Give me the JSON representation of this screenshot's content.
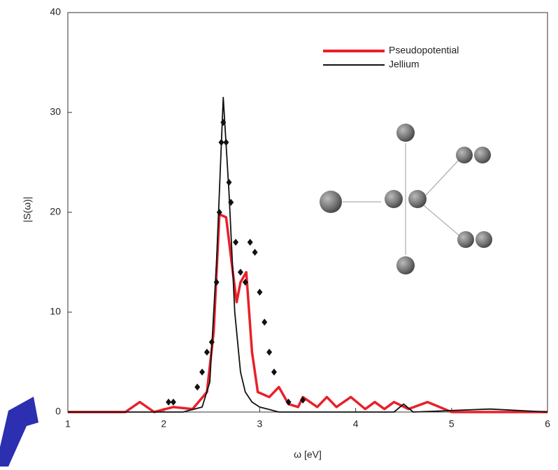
{
  "chart_data": {
    "type": "line",
    "xlabel": "ω [eV]",
    "ylabel": "|S(ω)|",
    "xlim": [
      1,
      6
    ],
    "xticks": [
      1,
      2,
      3,
      4,
      5,
      6
    ],
    "ylim": [
      0,
      40
    ],
    "yticks": [
      0,
      10,
      20,
      30,
      40
    ],
    "legend": "upper right",
    "series": [
      {
        "name": "Pseudopotential",
        "color": "#e8202a",
        "x": [
          1,
          1.6,
          1.75,
          1.9,
          2.1,
          2.3,
          2.45,
          2.52,
          2.58,
          2.65,
          2.72,
          2.76,
          2.8,
          2.86,
          2.92,
          2.98,
          3.1,
          3.2,
          3.3,
          3.4,
          3.45,
          3.6,
          3.7,
          3.8,
          3.95,
          4.1,
          4.2,
          4.3,
          4.4,
          4.55,
          4.75,
          5,
          6
        ],
        "values": [
          0,
          0,
          1,
          0,
          0.5,
          0.3,
          2,
          8,
          19.8,
          19.5,
          14,
          11,
          13,
          14,
          6,
          2,
          1.5,
          2.5,
          0.8,
          0.5,
          1.5,
          0.5,
          1.5,
          0.5,
          1.5,
          0.3,
          1,
          0.3,
          1,
          0.3,
          1,
          0,
          0
        ]
      },
      {
        "name": "Jellium",
        "color": "#111111",
        "x": [
          1,
          2.2,
          2.4,
          2.48,
          2.55,
          2.62,
          2.68,
          2.74,
          2.8,
          2.85,
          2.92,
          3,
          3.2,
          4.4,
          4.5,
          4.6,
          5.4,
          6
        ],
        "values": [
          0,
          0,
          0.5,
          3,
          15,
          31.5,
          22,
          10,
          4,
          2,
          1,
          0.5,
          0,
          0,
          0.8,
          0,
          0.3,
          0
        ]
      }
    ],
    "markers": {
      "color": "#111111",
      "x": [
        2.05,
        2.1,
        2.35,
        2.4,
        2.45,
        2.5,
        2.55,
        2.58,
        2.6,
        2.62,
        2.65,
        2.68,
        2.7,
        2.75,
        2.8,
        2.85,
        2.9,
        2.95,
        3.0,
        3.05,
        3.1,
        3.15,
        3.3,
        3.45
      ],
      "values": [
        1,
        1,
        2.5,
        4,
        6,
        7,
        13,
        20,
        27,
        29,
        27,
        23,
        21,
        17,
        14,
        13,
        17,
        16,
        12,
        9,
        6,
        4,
        1,
        1.2
      ]
    }
  }
}
